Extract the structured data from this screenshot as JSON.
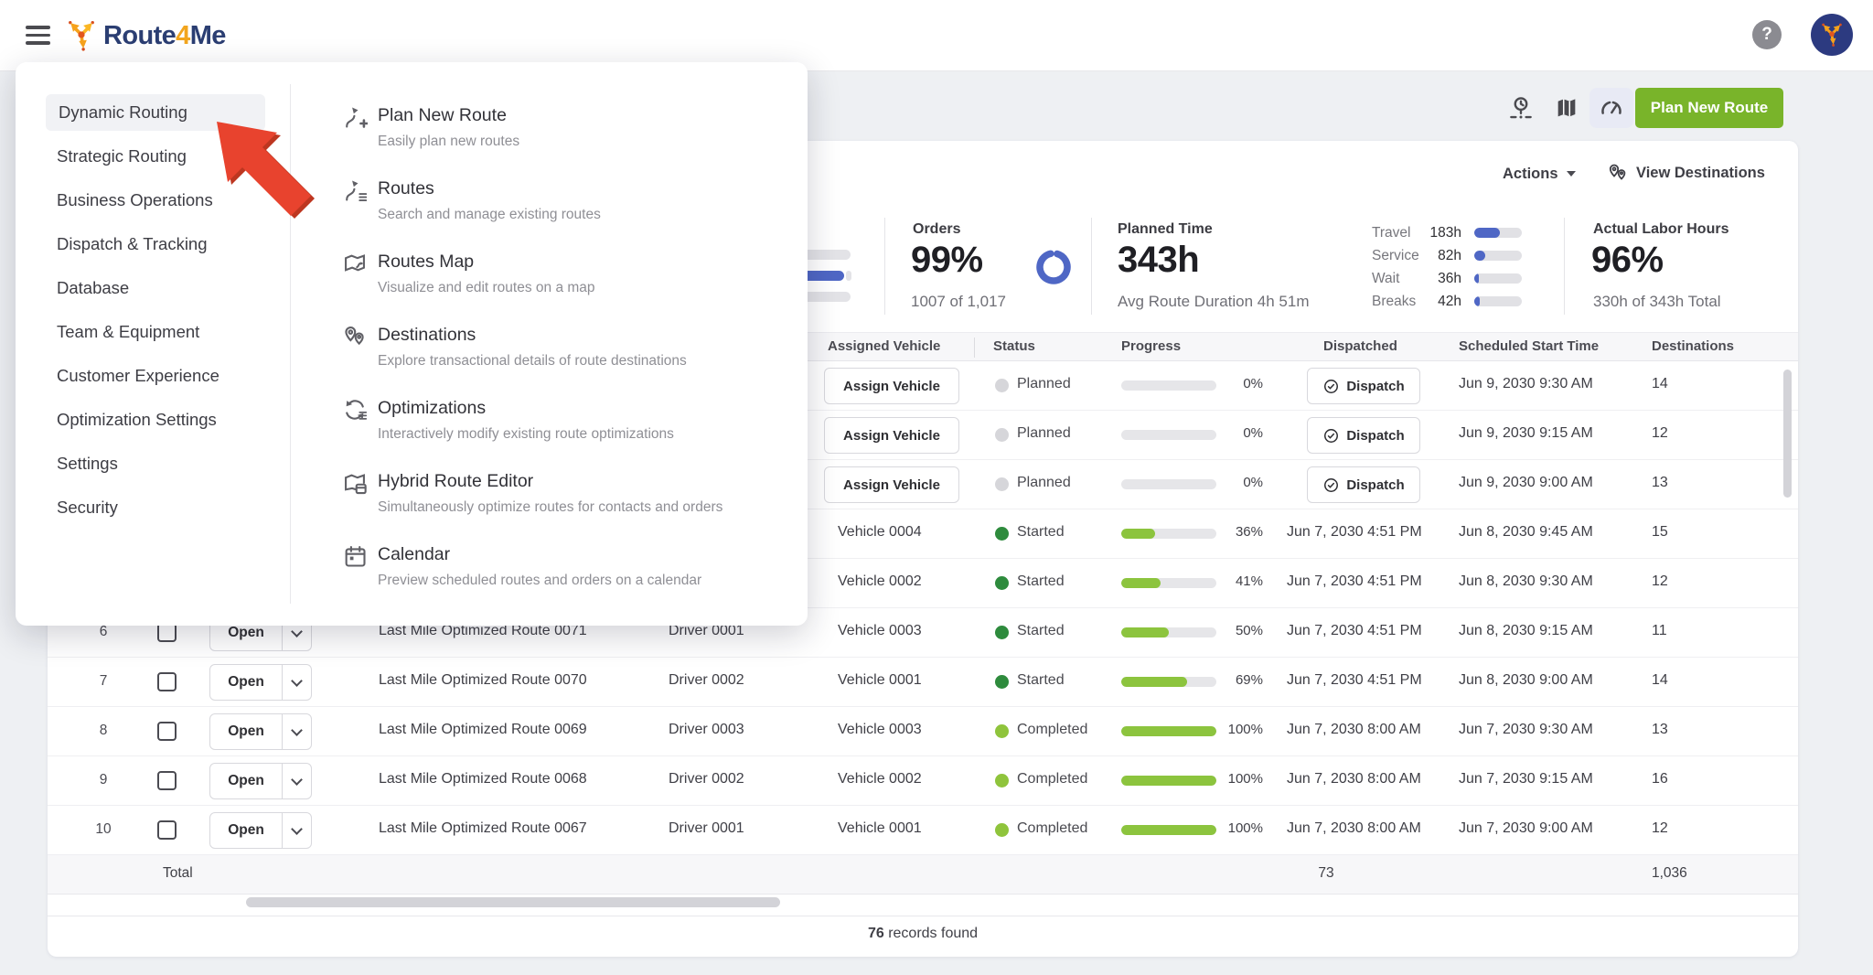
{
  "topbar": {
    "logo_route": "Route",
    "logo_4": "4",
    "logo_me": "Me",
    "help": "?"
  },
  "toolbar": {
    "plan_new_route_label": "Plan New Route"
  },
  "card": {
    "actions_label": "Actions",
    "view_destinations_label": "View Destinations"
  },
  "stats": {
    "orders": {
      "label": "Orders",
      "value": "99%",
      "sub": "1007 of 1,017",
      "donut_pct": 99
    },
    "planned_time": {
      "label": "Planned Time",
      "value": "343h",
      "sub": "Avg Route Duration 4h 51m"
    },
    "time_breakdown": [
      {
        "label": "Travel",
        "value": "183h",
        "pct": 53
      },
      {
        "label": "Service",
        "value": "82h",
        "pct": 24
      },
      {
        "label": "Wait",
        "value": "36h",
        "pct": 10
      },
      {
        "label": "Breaks",
        "value": "42h",
        "pct": 12
      }
    ],
    "actual_labor": {
      "label": "Actual Labor Hours",
      "value": "96%",
      "sub": "330h of 343h Total"
    }
  },
  "table": {
    "headers": [
      "Assigned Vehicle",
      "Status",
      "Progress",
      "Dispatched",
      "Scheduled Start Time",
      "Destinations"
    ],
    "buttons": {
      "assign_vehicle": "Assign Vehicle",
      "dispatch": "Dispatch",
      "open": "Open"
    },
    "rows": [
      {
        "assign_vehicle": true,
        "status": "Planned",
        "status_kind": "planned",
        "progress": 0,
        "progress_label": "0%",
        "dispatch_button": true,
        "scheduled": "Jun 9, 2030 9:30 AM",
        "destinations": "14"
      },
      {
        "assign_vehicle": true,
        "status": "Planned",
        "status_kind": "planned",
        "progress": 0,
        "progress_label": "0%",
        "dispatch_button": true,
        "scheduled": "Jun 9, 2030 9:15 AM",
        "destinations": "12"
      },
      {
        "assign_vehicle": true,
        "status": "Planned",
        "status_kind": "planned",
        "progress": 0,
        "progress_label": "0%",
        "dispatch_button": true,
        "scheduled": "Jun 9, 2030 9:00 AM",
        "destinations": "13"
      },
      {
        "vehicle": "Vehicle 0004",
        "status": "Started",
        "status_kind": "started",
        "progress": 36,
        "progress_label": "36%",
        "dispatched": "Jun 7, 2030 4:51 PM",
        "scheduled": "Jun 8, 2030 9:45 AM",
        "destinations": "15"
      },
      {
        "vehicle": "Vehicle 0002",
        "status": "Started",
        "status_kind": "started",
        "progress": 41,
        "progress_label": "41%",
        "dispatched": "Jun 7, 2030 4:51 PM",
        "scheduled": "Jun 8, 2030 9:30 AM",
        "destinations": "12"
      },
      {
        "num": "6",
        "route": "Last Mile Optimized Route 0071",
        "driver": "Driver 0001",
        "vehicle": "Vehicle 0003",
        "status": "Started",
        "status_kind": "started",
        "progress": 50,
        "progress_label": "50%",
        "dispatched": "Jun 7, 2030 4:51 PM",
        "scheduled": "Jun 8, 2030 9:15 AM",
        "destinations": "11"
      },
      {
        "num": "7",
        "route": "Last Mile Optimized Route 0070",
        "driver": "Driver 0002",
        "vehicle": "Vehicle 0001",
        "status": "Started",
        "status_kind": "started",
        "progress": 69,
        "progress_label": "69%",
        "dispatched": "Jun 7, 2030 4:51 PM",
        "scheduled": "Jun 8, 2030 9:00 AM",
        "destinations": "14"
      },
      {
        "num": "8",
        "route": "Last Mile Optimized Route 0069",
        "driver": "Driver 0003",
        "vehicle": "Vehicle 0003",
        "status": "Completed",
        "status_kind": "completed",
        "progress": 100,
        "progress_label": "100%",
        "dispatched": "Jun 7, 2030 8:00 AM",
        "scheduled": "Jun 7, 2030 9:30 AM",
        "destinations": "13"
      },
      {
        "num": "9",
        "route": "Last Mile Optimized Route 0068",
        "driver": "Driver 0002",
        "vehicle": "Vehicle 0002",
        "status": "Completed",
        "status_kind": "completed",
        "progress": 100,
        "progress_label": "100%",
        "dispatched": "Jun 7, 2030 8:00 AM",
        "scheduled": "Jun 7, 2030 9:15 AM",
        "destinations": "16"
      },
      {
        "num": "10",
        "route": "Last Mile Optimized Route 0067",
        "driver": "Driver 0001",
        "vehicle": "Vehicle 0001",
        "status": "Completed",
        "status_kind": "completed",
        "progress": 100,
        "progress_label": "100%",
        "dispatched": "Jun 7, 2030 8:00 AM",
        "scheduled": "Jun 7, 2030 9:00 AM",
        "destinations": "12"
      }
    ],
    "total": {
      "label": "Total",
      "dispatched": "73",
      "destinations": "1,036"
    }
  },
  "footer": {
    "count": "76",
    "suffix": " records found"
  },
  "menu": {
    "left_items": [
      {
        "label": "Dynamic Routing",
        "active": true
      },
      {
        "label": "Strategic Routing"
      },
      {
        "label": "Business Operations"
      },
      {
        "label": "Dispatch & Tracking"
      },
      {
        "label": "Database"
      },
      {
        "label": "Team & Equipment"
      },
      {
        "label": "Customer Experience"
      },
      {
        "label": "Optimization Settings"
      },
      {
        "label": "Settings"
      },
      {
        "label": "Security"
      }
    ],
    "right_items": [
      {
        "icon": "plan-new-route-icon",
        "title": "Plan New Route",
        "desc": "Easily plan new routes"
      },
      {
        "icon": "routes-icon",
        "title": "Routes",
        "desc": "Search and manage existing routes"
      },
      {
        "icon": "routes-map-icon",
        "title": "Routes Map",
        "desc": "Visualize and edit routes on a map"
      },
      {
        "icon": "destinations-icon",
        "title": "Destinations",
        "desc": "Explore transactional details of route destinations"
      },
      {
        "icon": "optimizations-icon",
        "title": "Optimizations",
        "desc": "Interactively modify existing route optimizations"
      },
      {
        "icon": "hybrid-route-editor-icon",
        "title": "Hybrid Route Editor",
        "desc": "Simultaneously optimize routes for contacts and orders"
      },
      {
        "icon": "calendar-icon",
        "title": "Calendar",
        "desc": "Preview scheduled routes and orders on a calendar"
      }
    ]
  },
  "colors": {
    "accent_blue": "#4f67c5",
    "progress_green": "#8cc43e",
    "started_green": "#2e8b3d",
    "completed_green": "#8fc43c",
    "button_green": "#79b42a",
    "arrow_red": "#e8432e",
    "arrow_red_dark": "#bd3620"
  }
}
